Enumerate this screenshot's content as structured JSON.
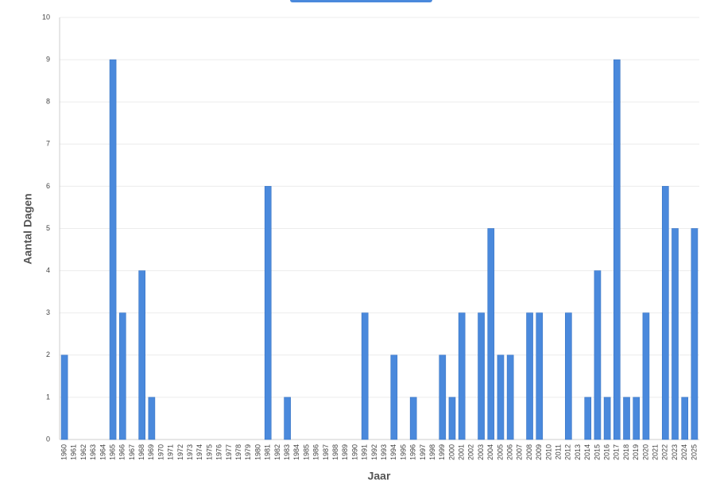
{
  "chart_data": {
    "type": "bar",
    "x_label": "Jaar",
    "y_label": "Aantal Dagen",
    "categories": [
      "1960",
      "1961",
      "1962",
      "1963",
      "1964",
      "1965",
      "1966",
      "1967",
      "1968",
      "1969",
      "1970",
      "1971",
      "1972",
      "1973",
      "1974",
      "1975",
      "1976",
      "1977",
      "1978",
      "1979",
      "1980",
      "1981",
      "1982",
      "1983",
      "1984",
      "1985",
      "1986",
      "1987",
      "1988",
      "1989",
      "1990",
      "1991",
      "1992",
      "1993",
      "1994",
      "1995",
      "1996",
      "1997",
      "1998",
      "1999",
      "2000",
      "2001",
      "2002",
      "2003",
      "2004",
      "2005",
      "2006",
      "2007",
      "2008",
      "2009",
      "2010",
      "2011",
      "2012",
      "2013",
      "2014",
      "2015",
      "2016",
      "2017",
      "2018",
      "2019",
      "2020",
      "2021",
      "2022",
      "2023",
      "2024",
      "2025"
    ],
    "values": [
      2,
      0,
      0,
      0,
      0,
      9,
      3,
      0,
      4,
      1,
      0,
      0,
      0,
      0,
      0,
      0,
      0,
      0,
      0,
      0,
      0,
      6,
      0,
      1,
      0,
      0,
      0,
      0,
      0,
      0,
      0,
      3,
      0,
      0,
      2,
      0,
      1,
      0,
      0,
      2,
      1,
      3,
      0,
      3,
      5,
      2,
      2,
      0,
      3,
      3,
      0,
      0,
      3,
      0,
      1,
      4,
      1,
      9,
      1,
      1,
      3,
      0,
      6,
      5,
      1,
      5
    ],
    "color": "#4a89dc",
    "ylim": [
      0,
      10
    ],
    "yticks": [
      0,
      1,
      2,
      3,
      4,
      5,
      6,
      7,
      8,
      9,
      10
    ],
    "grid": true
  }
}
